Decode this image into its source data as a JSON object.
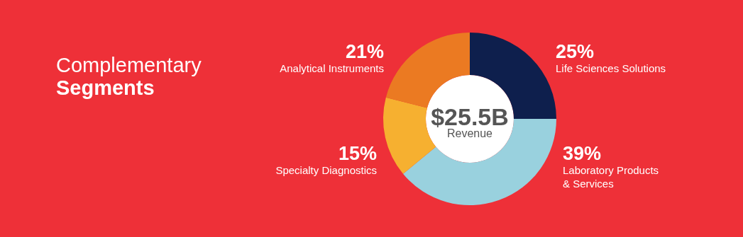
{
  "chart_data": {
    "type": "donut",
    "title": "Complementary Segments",
    "categories": [
      "Life Sciences Solutions",
      "Laboratory Products\n& Services",
      "Specialty Diagnostics",
      "Analytical Instruments"
    ],
    "values": [
      25,
      39,
      15,
      21
    ],
    "value_labels": [
      "25%",
      "39%",
      "15%",
      "21%"
    ],
    "colors": [
      "#0e1f4d",
      "#99d1de",
      "#f6b030",
      "#eb7a22"
    ],
    "annotations": [
      "$25.5B",
      "Revenue"
    ]
  }
}
